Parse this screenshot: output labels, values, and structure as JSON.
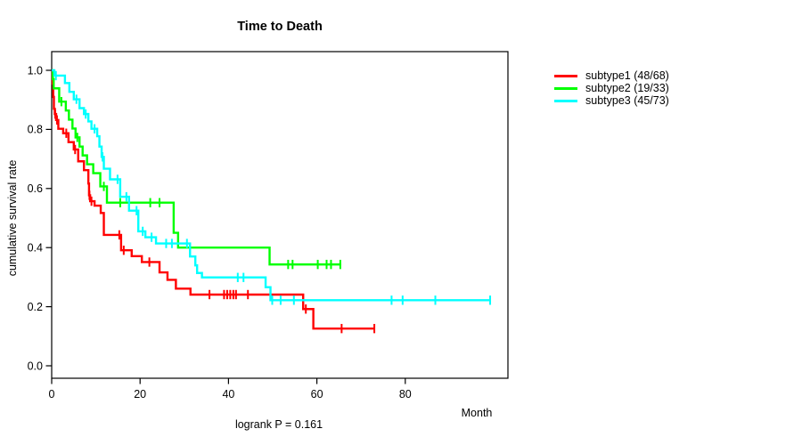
{
  "figure": {
    "title": "Time to Death",
    "x_axis_label": "Month",
    "y_axis_label": "cumulative survival rate",
    "annotation": "logrank P = 0.161"
  },
  "chart_data": {
    "type": "line",
    "variant": "kaplan-meier-step",
    "title": "Time to Death",
    "xlabel": "Month",
    "ylabel": "cumulative survival rate",
    "annotation": "logrank P = 0.161",
    "xlim": [
      0,
      103
    ],
    "ylim": [
      0,
      1.04
    ],
    "x_ticks": [
      0,
      20,
      40,
      60,
      80
    ],
    "y_ticks": [
      0.0,
      0.2,
      0.4,
      0.6,
      0.8,
      1.0
    ],
    "y_tick_labels": [
      "0.0",
      "0.2",
      "0.4",
      "0.6",
      "0.8",
      "1.0"
    ],
    "grid": false,
    "legend_position": "right-outside",
    "series": [
      {
        "name": "subtype1 (48/68)",
        "color": "#ff0000",
        "steps": [
          [
            0,
            1.0
          ],
          [
            0.2,
            0.955
          ],
          [
            0.35,
            0.91
          ],
          [
            0.5,
            0.87
          ],
          [
            0.7,
            0.852
          ],
          [
            1.0,
            0.832
          ],
          [
            1.5,
            0.802
          ],
          [
            2.6,
            0.787
          ],
          [
            3.8,
            0.757
          ],
          [
            5.0,
            0.732
          ],
          [
            6.0,
            0.692
          ],
          [
            7.3,
            0.662
          ],
          [
            8.3,
            0.617
          ],
          [
            8.45,
            0.577
          ],
          [
            8.7,
            0.557
          ],
          [
            9.7,
            0.542
          ],
          [
            11.1,
            0.517
          ],
          [
            11.8,
            0.443
          ],
          [
            15.7,
            0.391
          ],
          [
            18.1,
            0.371
          ],
          [
            20.4,
            0.351
          ],
          [
            24.4,
            0.316
          ],
          [
            26.2,
            0.291
          ],
          [
            28.1,
            0.261
          ],
          [
            31.4,
            0.241
          ],
          [
            56.9,
            0.192
          ],
          [
            59.2,
            0.126
          ],
          [
            73.0,
            0.126
          ]
        ],
        "censors": [
          [
            0.8,
            0.852
          ],
          [
            1.2,
            0.832
          ],
          [
            3.3,
            0.787
          ],
          [
            5.3,
            0.732
          ],
          [
            8.55,
            0.577
          ],
          [
            9.0,
            0.557
          ],
          [
            15.3,
            0.443
          ],
          [
            16.3,
            0.391
          ],
          [
            22.1,
            0.351
          ],
          [
            35.7,
            0.241
          ],
          [
            39.0,
            0.241
          ],
          [
            39.7,
            0.241
          ],
          [
            40.4,
            0.241
          ],
          [
            41.1,
            0.241
          ],
          [
            41.7,
            0.241
          ],
          [
            44.4,
            0.241
          ],
          [
            57.5,
            0.192
          ],
          [
            65.6,
            0.126
          ],
          [
            73.0,
            0.126
          ]
        ]
      },
      {
        "name": "subtype2 (19/33)",
        "color": "#00ff00",
        "steps": [
          [
            0,
            1.0
          ],
          [
            0.25,
            0.97
          ],
          [
            0.45,
            0.939
          ],
          [
            1.7,
            0.894
          ],
          [
            3.2,
            0.864
          ],
          [
            3.9,
            0.833
          ],
          [
            4.7,
            0.803
          ],
          [
            5.4,
            0.773
          ],
          [
            6.3,
            0.742
          ],
          [
            7.0,
            0.712
          ],
          [
            8.0,
            0.682
          ],
          [
            9.4,
            0.652
          ],
          [
            11.0,
            0.607
          ],
          [
            12.5,
            0.552
          ],
          [
            27.6,
            0.45
          ],
          [
            28.6,
            0.4
          ],
          [
            49.3,
            0.343
          ],
          [
            65.5,
            0.343
          ]
        ],
        "censors": [
          [
            2.2,
            0.894
          ],
          [
            5.8,
            0.773
          ],
          [
            11.8,
            0.607
          ],
          [
            15.5,
            0.552
          ],
          [
            22.3,
            0.552
          ],
          [
            24.4,
            0.552
          ],
          [
            53.5,
            0.343
          ],
          [
            54.5,
            0.343
          ],
          [
            60.2,
            0.343
          ],
          [
            62.2,
            0.343
          ],
          [
            63.2,
            0.343
          ],
          [
            65.3,
            0.343
          ]
        ]
      },
      {
        "name": "subtype3 (45/73)",
        "color": "#00ffff",
        "steps": [
          [
            0,
            1.0
          ],
          [
            0.6,
            0.982
          ],
          [
            3.0,
            0.957
          ],
          [
            4.0,
            0.927
          ],
          [
            5.0,
            0.902
          ],
          [
            6.3,
            0.872
          ],
          [
            7.3,
            0.852
          ],
          [
            8.3,
            0.827
          ],
          [
            9.0,
            0.802
          ],
          [
            10.3,
            0.777
          ],
          [
            10.8,
            0.742
          ],
          [
            11.3,
            0.707
          ],
          [
            11.8,
            0.667
          ],
          [
            13.2,
            0.631
          ],
          [
            15.5,
            0.572
          ],
          [
            17.5,
            0.525
          ],
          [
            19.6,
            0.455
          ],
          [
            21.2,
            0.435
          ],
          [
            23.6,
            0.414
          ],
          [
            31.3,
            0.37
          ],
          [
            32.5,
            0.34
          ],
          [
            32.9,
            0.314
          ],
          [
            34.0,
            0.299
          ],
          [
            48.4,
            0.266
          ],
          [
            49.5,
            0.222
          ],
          [
            99.2,
            0.222
          ]
        ],
        "censors": [
          [
            0.95,
            0.982
          ],
          [
            5.6,
            0.902
          ],
          [
            7.7,
            0.852
          ],
          [
            9.7,
            0.802
          ],
          [
            11.5,
            0.707
          ],
          [
            14.9,
            0.631
          ],
          [
            16.9,
            0.572
          ],
          [
            19.2,
            0.525
          ],
          [
            20.6,
            0.455
          ],
          [
            22.6,
            0.435
          ],
          [
            25.9,
            0.414
          ],
          [
            27.2,
            0.414
          ],
          [
            30.6,
            0.414
          ],
          [
            42.1,
            0.299
          ],
          [
            43.4,
            0.299
          ],
          [
            49.9,
            0.222
          ],
          [
            51.8,
            0.222
          ],
          [
            54.8,
            0.222
          ],
          [
            76.9,
            0.222
          ],
          [
            79.4,
            0.222
          ],
          [
            86.8,
            0.222
          ],
          [
            99.2,
            0.222
          ]
        ]
      }
    ]
  }
}
